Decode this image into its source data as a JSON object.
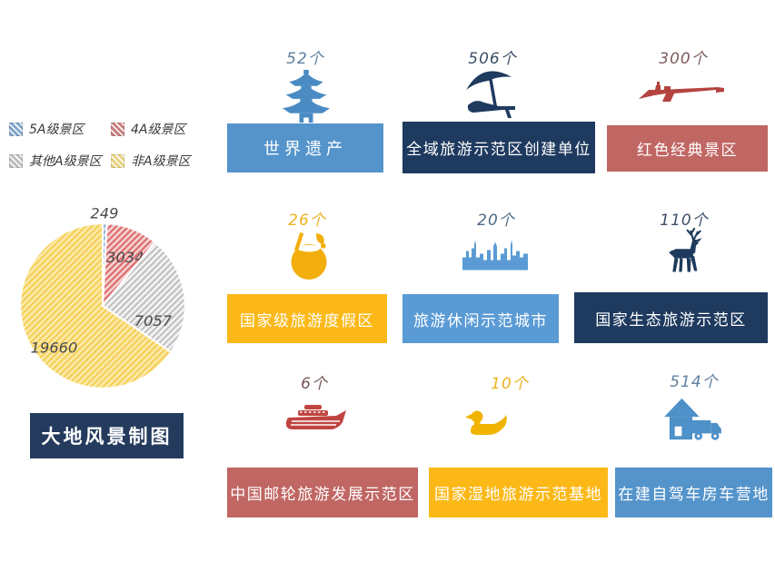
{
  "page": {
    "background": "#ffffff"
  },
  "legend": {
    "items": [
      {
        "label": "5A级景区",
        "color": "#7FA6C9"
      },
      {
        "label": "4A级景区",
        "color": "#C97E7E"
      },
      {
        "label": "其他A级景区",
        "color": "#BDBDBD"
      },
      {
        "label": "非A级景区",
        "color": "#E9D27E"
      }
    ]
  },
  "chart_data": {
    "type": "pie",
    "title": "",
    "labels": [
      "5A级景区",
      "4A级景区",
      "其他A级景区",
      "非A级景区"
    ],
    "values": [
      249,
      3034,
      7057,
      19660
    ],
    "total": 30000,
    "start_angle_deg": -90,
    "direction": "clockwise",
    "legend_position": "top-left",
    "data_label_color": "#4a4a4a",
    "slices": [
      {
        "label": "5A级景区",
        "value": 249,
        "data_label": "249",
        "color": "#8FAECE",
        "bg": "#D7E3EF",
        "hatch": true,
        "label_xy": [
          114,
          13
        ]
      },
      {
        "label": "4A级景区",
        "value": 3034,
        "data_label": "3034",
        "color": "#DC6A6A",
        "bg": "#F6D2D2",
        "hatch": true,
        "label_xy": [
          138,
          64
        ]
      },
      {
        "label": "其他A级景区",
        "value": 7057,
        "data_label": "7057",
        "color": "#BFBFBF",
        "bg": "#F4F4F4",
        "hatch": true,
        "label_xy": [
          170,
          137
        ]
      },
      {
        "label": "非A级景区",
        "value": 19660,
        "data_label": "19660",
        "color": "#F5CE56",
        "bg": "#FBEAA8",
        "hatch": true,
        "label_xy": [
          56,
          168
        ]
      }
    ]
  },
  "brand": {
    "label": "大地风景制图",
    "bg": "#243B5E",
    "text_color": "#ffffff"
  },
  "grid": {
    "items": [
      {
        "count": "52个",
        "label": "世界遗产",
        "icon": "pagoda-icon",
        "banner_color": "#5494CB",
        "icon_color": "#4A8BC4",
        "count_color": "#5F7F9E"
      },
      {
        "count": "506个",
        "label": "全域旅游示范区创建单位",
        "icon": "beach-umbrella-icon",
        "banner_color": "#1F3A5F",
        "icon_color": "#1F3A5F",
        "count_color": "#3C4F66"
      },
      {
        "count": "300个",
        "label": "红色经典景区",
        "icon": "rifle-icon",
        "banner_color": "#C06663",
        "icon_color": "#B5433F",
        "count_color": "#7D5B5B"
      },
      {
        "count": "26个",
        "label": "国家级旅游度假区",
        "icon": "coconut-drink-icon",
        "banner_color": "#FBB817",
        "icon_color": "#F2AE0C",
        "count_color": "#ECB220"
      },
      {
        "count": "20个",
        "label": "旅游休闲示范城市",
        "icon": "city-skyline-icon",
        "banner_color": "#5B9BD5",
        "icon_color": "#5B9BD5",
        "count_color": "#4F6B84"
      },
      {
        "count": "110个",
        "label": "国家生态旅游示范区",
        "icon": "deer-icon",
        "banner_color": "#1F3A5F",
        "icon_color": "#1E3A5C",
        "count_color": "#3C4F66"
      },
      {
        "count": "6个",
        "label": "中国邮轮旅游发展示范区",
        "icon": "cruise-ship-icon",
        "banner_color": "#C06663",
        "icon_color": "#C04540",
        "count_color": "#75585A"
      },
      {
        "count": "10个",
        "label": "国家湿地旅游示范基地",
        "icon": "duck-icon",
        "banner_color": "#FBB817",
        "icon_color": "#F0B400",
        "count_color": "#ECB220"
      },
      {
        "count": "514个",
        "label": "在建自驾车房车营地",
        "icon": "rv-camp-icon",
        "banner_color": "#5494CB",
        "icon_color": "#4E90C8",
        "count_color": "#5F7F9E"
      }
    ]
  }
}
